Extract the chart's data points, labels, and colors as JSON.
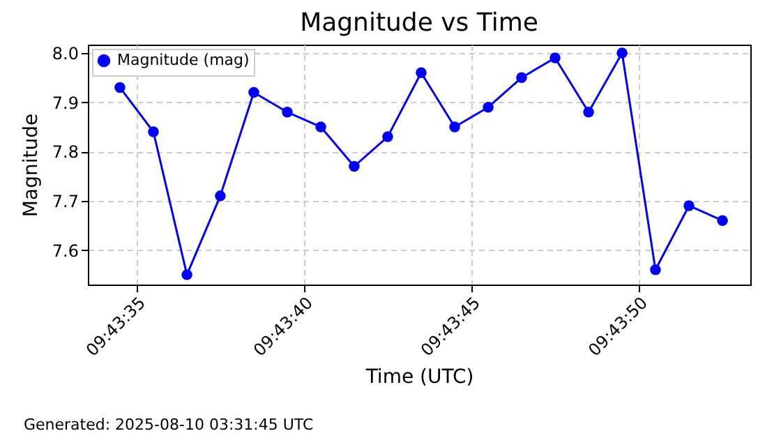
{
  "chart_data": {
    "type": "line",
    "title": "Magnitude vs Time",
    "xlabel": "Time (UTC)",
    "ylabel": "Magnitude",
    "annotations": [
      "Generated: 2025-08-10 03:31:45 UTC"
    ],
    "x": [
      9.72625,
      9.726528,
      9.726806,
      9.727083,
      9.727361,
      9.727639,
      9.727917,
      9.728194,
      9.728472,
      9.72875,
      9.729028,
      9.729306,
      9.729583,
      9.729861,
      9.730139,
      9.730417,
      9.730694,
      9.730972,
      9.73125
    ],
    "series": [
      {
        "name": "Magnitude (mag)",
        "color": "#0000ff",
        "values": [
          7.93,
          7.84,
          7.55,
          7.71,
          7.92,
          7.88,
          7.85,
          7.77,
          7.83,
          7.96,
          7.85,
          7.89,
          7.95,
          7.99,
          7.88,
          8.0,
          7.56,
          7.69,
          7.66
        ]
      }
    ],
    "xlim": [
      9.725984,
      9.731481
    ],
    "xticks": [
      {
        "value": 9.726389,
        "label": "09:43:35"
      },
      {
        "value": 9.727778,
        "label": "09:43:40"
      },
      {
        "value": 9.729167,
        "label": "09:43:45"
      },
      {
        "value": 9.730556,
        "label": "09:43:50"
      }
    ],
    "ylim": [
      7.53,
      8.017
    ],
    "yticks": [
      7.6,
      7.7,
      7.8,
      7.9,
      {
        "value": 8,
        "label": "8.0"
      }
    ],
    "grid": true,
    "legend": "top left",
    "marker": "circle",
    "line_style": "solid"
  }
}
